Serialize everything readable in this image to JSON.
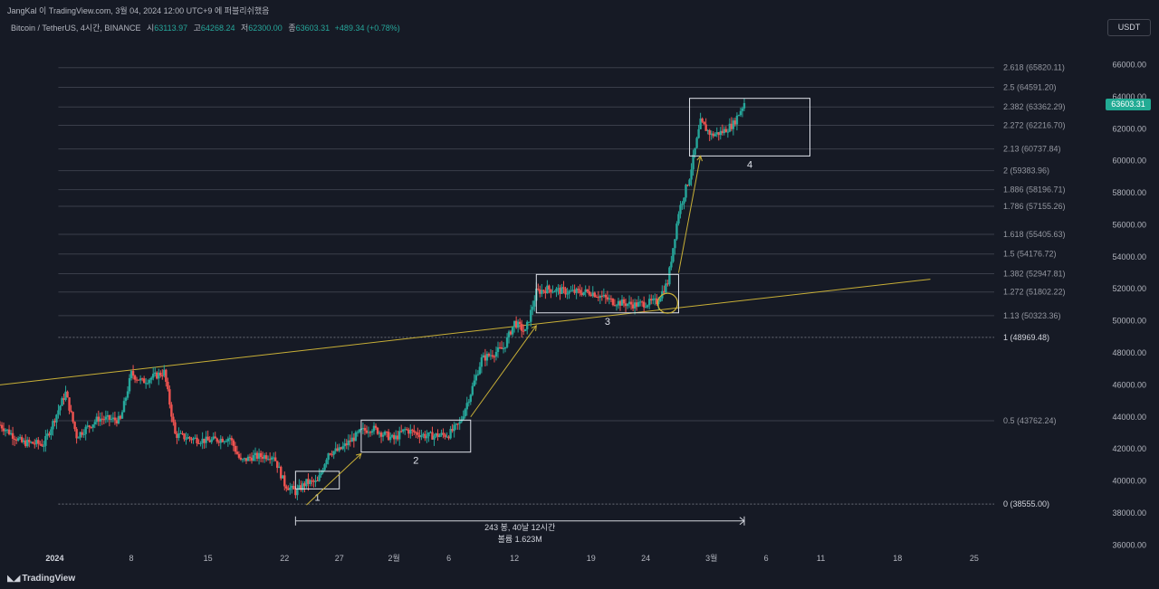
{
  "header": {
    "published": "JangKal 이 TradingView.com, 3월 04, 2024 12:00 UTC+9 에 퍼블리쉬했음",
    "symbol": "Bitcoin / TetherUS, 4시간, BINANCE",
    "open_label": "시",
    "open": "63113.97",
    "high_label": "고",
    "high": "64268.24",
    "low_label": "저",
    "low": "62300.00",
    "close_label": "종",
    "close": "63603.31",
    "change": "+489.34 (+0.78%)",
    "currency": "USDT"
  },
  "logo": {
    "text": "TradingView",
    "icon": "tradingview-logo-icon"
  },
  "colors": {
    "bg": "#161a25",
    "up": "#26a69a",
    "down": "#ef5350",
    "trend": "#c9b037",
    "fib": "#3a3e4a",
    "tag": "#22ab94"
  },
  "chart_data": {
    "type": "candlestick",
    "symbol": "BTCUSDT",
    "timeframe": "4H",
    "y_axis": {
      "min": 35000,
      "max": 67500,
      "ticks": [
        "66000.00",
        "64000.00",
        "62000.00",
        "60000.00",
        "58000.00",
        "56000.00",
        "54000.00",
        "52000.00",
        "50000.00",
        "48000.00",
        "46000.00",
        "44000.00",
        "42000.00",
        "40000.00",
        "38000.00",
        "36000.00"
      ]
    },
    "x_axis": {
      "start": "2023-12-27",
      "end": "2024-03-27",
      "ticks": [
        {
          "date": "2024-01-01",
          "label": "2024",
          "bold": true
        },
        {
          "date": "2024-01-08",
          "label": "8"
        },
        {
          "date": "2024-01-15",
          "label": "15"
        },
        {
          "date": "2024-01-22",
          "label": "22"
        },
        {
          "date": "2024-01-27",
          "label": "27"
        },
        {
          "date": "2024-02-01",
          "label": "2월"
        },
        {
          "date": "2024-02-06",
          "label": "6"
        },
        {
          "date": "2024-02-12",
          "label": "12"
        },
        {
          "date": "2024-02-19",
          "label": "19"
        },
        {
          "date": "2024-02-24",
          "label": "24"
        },
        {
          "date": "2024-03-01",
          "label": "3월"
        },
        {
          "date": "2024-03-06",
          "label": "6"
        },
        {
          "date": "2024-03-11",
          "label": "11"
        },
        {
          "date": "2024-03-18",
          "label": "18"
        },
        {
          "date": "2024-03-25",
          "label": "25"
        }
      ]
    },
    "price_path": [
      [
        "2023-12-27",
        43500
      ],
      [
        "2023-12-29",
        42400
      ],
      [
        "2023-12-31",
        42300
      ],
      [
        "2024-01-02",
        45500
      ],
      [
        "2024-01-03",
        42800
      ],
      [
        "2024-01-05",
        43900
      ],
      [
        "2024-01-07",
        43800
      ],
      [
        "2024-01-08",
        46700
      ],
      [
        "2024-01-09",
        46200
      ],
      [
        "2024-01-10",
        46500
      ],
      [
        "2024-01-11",
        46800
      ],
      [
        "2024-01-12",
        42900
      ],
      [
        "2024-01-13",
        42700
      ],
      [
        "2024-01-15",
        42500
      ],
      [
        "2024-01-17",
        42700
      ],
      [
        "2024-01-18",
        41200
      ],
      [
        "2024-01-19",
        41500
      ],
      [
        "2024-01-21",
        41600
      ],
      [
        "2024-01-22",
        39800
      ],
      [
        "2024-01-23",
        39300
      ],
      [
        "2024-01-24",
        39900
      ],
      [
        "2024-01-25",
        39900
      ],
      [
        "2024-01-26",
        41800
      ],
      [
        "2024-01-27",
        41900
      ],
      [
        "2024-01-29",
        43100
      ],
      [
        "2024-01-30",
        43300
      ],
      [
        "2024-02-01",
        42600
      ],
      [
        "2024-02-02",
        43200
      ],
      [
        "2024-02-04",
        42800
      ],
      [
        "2024-02-06",
        42900
      ],
      [
        "2024-02-07",
        43600
      ],
      [
        "2024-02-08",
        45500
      ],
      [
        "2024-02-09",
        47600
      ],
      [
        "2024-02-11",
        48300
      ],
      [
        "2024-02-12",
        49900
      ],
      [
        "2024-02-13",
        49300
      ],
      [
        "2024-02-14",
        51800
      ],
      [
        "2024-02-15",
        52000
      ],
      [
        "2024-02-17",
        51800
      ],
      [
        "2024-02-19",
        51800
      ],
      [
        "2024-02-21",
        51200
      ],
      [
        "2024-02-23",
        51000
      ],
      [
        "2024-02-25",
        51200
      ],
      [
        "2024-02-26",
        52400
      ],
      [
        "2024-02-27",
        56800
      ],
      [
        "2024-02-28",
        59000
      ],
      [
        "2024-02-29",
        62400
      ],
      [
        "2024-03-01",
        61600
      ],
      [
        "2024-03-02",
        61800
      ],
      [
        "2024-03-03",
        62300
      ],
      [
        "2024-03-04",
        63603
      ]
    ],
    "fibonacci": [
      {
        "ratio": "0",
        "price": "38555.00"
      },
      {
        "ratio": "0.5",
        "price": "43762.24"
      },
      {
        "ratio": "1",
        "price": "48969.48"
      },
      {
        "ratio": "1.13",
        "price": "50323.36"
      },
      {
        "ratio": "1.272",
        "price": "51802.22"
      },
      {
        "ratio": "1.382",
        "price": "52947.81"
      },
      {
        "ratio": "1.5",
        "price": "54176.72"
      },
      {
        "ratio": "1.618",
        "price": "55405.63"
      },
      {
        "ratio": "1.786",
        "price": "57155.26"
      },
      {
        "ratio": "1.886",
        "price": "58196.71"
      },
      {
        "ratio": "2",
        "price": "59383.96"
      },
      {
        "ratio": "2.13",
        "price": "60737.84"
      },
      {
        "ratio": "2.272",
        "price": "62216.70"
      },
      {
        "ratio": "2.382",
        "price": "63362.29"
      },
      {
        "ratio": "2.5",
        "price": "64591.20"
      },
      {
        "ratio": "2.618",
        "price": "65820.11"
      }
    ],
    "trendline": {
      "from": [
        "2023-12-27",
        46000
      ],
      "to": [
        "2024-03-21",
        52600
      ]
    },
    "boxes": [
      {
        "label": "1",
        "from": "2024-01-23",
        "to": "2024-01-27",
        "low": 39500,
        "high": 40600
      },
      {
        "label": "2",
        "from": "2024-01-29",
        "to": "2024-02-08",
        "low": 41800,
        "high": 43800
      },
      {
        "label": "3",
        "from": "2024-02-14",
        "to": "2024-02-27",
        "low": 50500,
        "high": 52900
      },
      {
        "label": "4",
        "from": "2024-02-28",
        "to": "2024-03-10",
        "low": 60300,
        "high": 63900
      }
    ],
    "arrows": [
      {
        "from": [
          "2024-01-24",
          38500
        ],
        "to": [
          "2024-01-29",
          41700
        ]
      },
      {
        "from": [
          "2024-02-08",
          44000
        ],
        "to": [
          "2024-02-14",
          49700
        ]
      },
      {
        "from": [
          "2024-02-27",
          53000
        ],
        "to": [
          "2024-02-29",
          60300
        ]
      }
    ],
    "circle": {
      "date": "2024-02-26",
      "price": 51100
    },
    "measure": {
      "from": "2024-01-23",
      "to": "2024-03-04",
      "price": 37500,
      "bars_label": "243 봉, 40날 12시간",
      "volume_label": "볼륨 1.623M"
    },
    "last_price": "63603.31"
  }
}
